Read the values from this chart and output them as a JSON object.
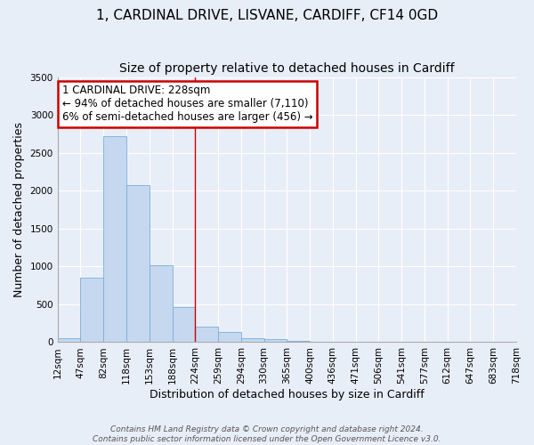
{
  "title": "1, CARDINAL DRIVE, LISVANE, CARDIFF, CF14 0GD",
  "subtitle": "Size of property relative to detached houses in Cardiff",
  "xlabel": "Distribution of detached houses by size in Cardiff",
  "ylabel": "Number of detached properties",
  "bar_values": [
    50,
    850,
    2720,
    2075,
    1010,
    460,
    205,
    140,
    55,
    35,
    20,
    5,
    5,
    3,
    0,
    0,
    0,
    0,
    0,
    0
  ],
  "bin_labels": [
    "12sqm",
    "47sqm",
    "82sqm",
    "118sqm",
    "153sqm",
    "188sqm",
    "224sqm",
    "259sqm",
    "294sqm",
    "330sqm",
    "365sqm",
    "400sqm",
    "436sqm",
    "471sqm",
    "506sqm",
    "541sqm",
    "577sqm",
    "612sqm",
    "647sqm",
    "683sqm",
    "718sqm"
  ],
  "bar_color": "#c5d8f0",
  "bar_edge_color": "#7aafd4",
  "annotation_title": "1 CARDINAL DRIVE: 228sqm",
  "annotation_line1": "← 94% of detached houses are smaller (7,110)",
  "annotation_line2": "6% of semi-detached houses are larger (456) →",
  "annotation_box_facecolor": "#ffffff",
  "annotation_box_edgecolor": "#cc0000",
  "vline_x_index": 6,
  "ylim": [
    0,
    3500
  ],
  "yticks": [
    0,
    500,
    1000,
    1500,
    2000,
    2500,
    3000,
    3500
  ],
  "footer_line1": "Contains HM Land Registry data © Crown copyright and database right 2024.",
  "footer_line2": "Contains public sector information licensed under the Open Government Licence v3.0.",
  "bg_color": "#e8eef8",
  "grid_color": "#ffffff",
  "title_fontsize": 11,
  "subtitle_fontsize": 10,
  "axis_label_fontsize": 9,
  "tick_fontsize": 7.5
}
